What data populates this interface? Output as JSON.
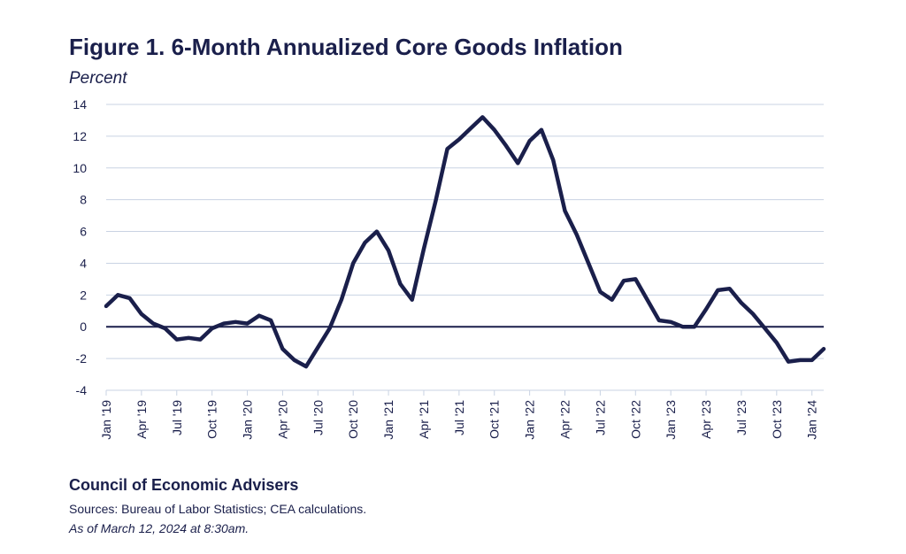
{
  "chart_data": {
    "type": "line",
    "title": "Figure 1. 6-Month Annualized Core Goods Inflation",
    "ylabel": "Percent",
    "xlabel": "",
    "ylim": [
      -4,
      14
    ],
    "yticks": [
      14,
      12,
      10,
      8,
      6,
      4,
      2,
      0,
      -2,
      -4
    ],
    "grid": true,
    "legend": "none",
    "line_color": "#1a1f4b",
    "x_tick_labels": [
      "Jan '19",
      "Apr '19",
      "Jul '19",
      "Oct '19",
      "Jan '20",
      "Apr '20",
      "Jul '20",
      "Oct '20",
      "Jan '21",
      "Apr '21",
      "Jul '21",
      "Oct '21",
      "Jan '22",
      "Apr '22",
      "Jul '22",
      "Oct '22",
      "Jan '23",
      "Apr '23",
      "Jul '23",
      "Oct '23",
      "Jan '24"
    ],
    "x": [
      "2019-01",
      "2019-02",
      "2019-03",
      "2019-04",
      "2019-05",
      "2019-06",
      "2019-07",
      "2019-08",
      "2019-09",
      "2019-10",
      "2019-11",
      "2019-12",
      "2020-01",
      "2020-02",
      "2020-03",
      "2020-04",
      "2020-05",
      "2020-06",
      "2020-07",
      "2020-08",
      "2020-09",
      "2020-10",
      "2020-11",
      "2020-12",
      "2021-01",
      "2021-02",
      "2021-03",
      "2021-04",
      "2021-05",
      "2021-06",
      "2021-07",
      "2021-08",
      "2021-09",
      "2021-10",
      "2021-11",
      "2021-12",
      "2022-01",
      "2022-02",
      "2022-03",
      "2022-04",
      "2022-05",
      "2022-06",
      "2022-07",
      "2022-08",
      "2022-09",
      "2022-10",
      "2022-11",
      "2022-12",
      "2023-01",
      "2023-02",
      "2023-03",
      "2023-04",
      "2023-05",
      "2023-06",
      "2023-07",
      "2023-08",
      "2023-09",
      "2023-10",
      "2023-11",
      "2023-12",
      "2024-01",
      "2024-02"
    ],
    "values": [
      1.3,
      2.0,
      1.8,
      0.8,
      0.2,
      -0.1,
      -0.8,
      -0.7,
      -0.8,
      -0.1,
      0.2,
      0.3,
      0.2,
      0.7,
      0.4,
      -1.4,
      -2.1,
      -2.5,
      -1.3,
      -0.1,
      1.7,
      4.0,
      5.3,
      6.0,
      4.8,
      2.7,
      1.7,
      4.9,
      7.9,
      11.2,
      11.8,
      12.5,
      13.2,
      12.4,
      11.4,
      10.3,
      11.7,
      12.4,
      10.5,
      7.3,
      5.8,
      4.0,
      2.2,
      1.7,
      2.9,
      3.0,
      1.7,
      0.4,
      0.3,
      0.0,
      0.0,
      1.1,
      2.3,
      2.4,
      1.5,
      0.8,
      -0.1,
      -1.0,
      -2.2,
      -2.1,
      -2.1,
      -1.4
    ]
  },
  "footer": {
    "org": "Council of Economic Advisers",
    "sources": "Sources: Bureau of Labor Statistics; CEA calculations.",
    "as_of": "As of March 12, 2024 at 8:30am."
  }
}
